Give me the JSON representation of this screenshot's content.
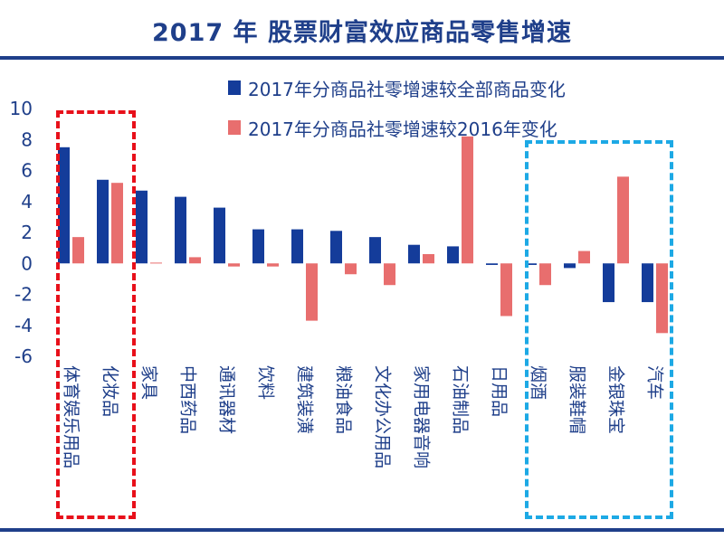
{
  "title": "2017 年 股票财富效应商品零售增速",
  "colors": {
    "title": "#1f3f8a",
    "series1": "#143c9a",
    "series2": "#e86e6e",
    "axis_text": "#1f3f8a",
    "box_red": "#e8101a",
    "box_blue": "#1da9e5"
  },
  "chart_data": {
    "type": "bar",
    "title": "2017 年 股票财富效应商品零售增速",
    "categories": [
      "体育娱乐用品",
      "化妆品",
      "家具",
      "中西药品",
      "通讯器材",
      "饮料",
      "建筑装潢",
      "粮油食品",
      "文化办公用品",
      "家用电器音响",
      "石油制品",
      "日用品",
      "烟酒",
      "服装鞋帽",
      "金银珠宝",
      "汽车"
    ],
    "series": [
      {
        "name": "2017年分商品社零增速较全部商品变化",
        "values": [
          7.5,
          5.4,
          4.7,
          4.3,
          3.6,
          2.2,
          2.2,
          2.1,
          1.7,
          1.2,
          1.1,
          -0.1,
          -0.1,
          -0.3,
          -2.5,
          -2.5
        ]
      },
      {
        "name": "2017年分商品社零增速较2016年变化",
        "values": [
          1.7,
          5.2,
          0.05,
          0.4,
          -0.2,
          -0.2,
          -3.7,
          -0.7,
          -1.4,
          0.6,
          8.2,
          -3.4,
          -1.4,
          0.8,
          5.6,
          -4.5
        ]
      }
    ],
    "ylim": [
      -6,
      10
    ],
    "yticks": [
      10,
      8,
      6,
      4,
      2,
      0,
      -2,
      -4,
      -6
    ],
    "xlabel": "",
    "ylabel": "",
    "legend": "top-right",
    "grid": false
  }
}
